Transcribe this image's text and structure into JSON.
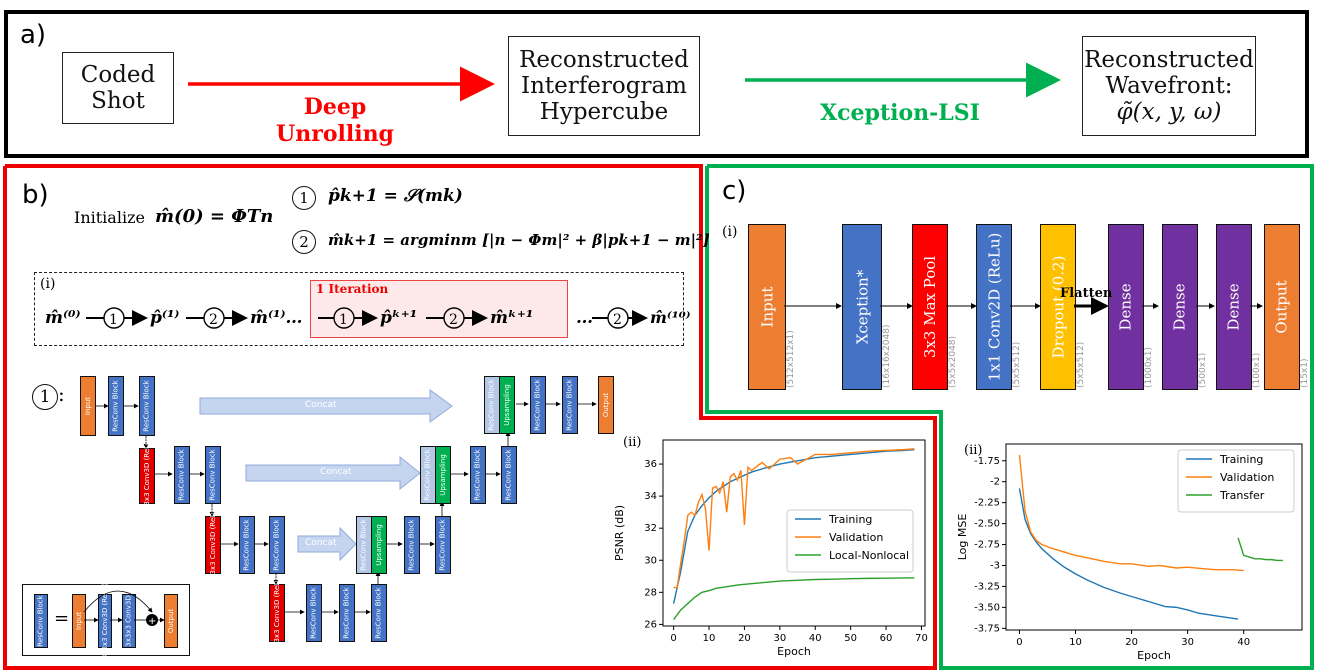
{
  "panel_a": {
    "label": "a)",
    "box1": [
      "Coded",
      "Shot"
    ],
    "arrow1_label": [
      "Deep",
      "Unrolling"
    ],
    "box2": [
      "Reconstructed",
      "Interferogram",
      "Hypercube"
    ],
    "arrow2_label": "Xception-LSI",
    "box3": [
      "Reconstructed",
      "Wavefront:"
    ],
    "box3_math": "φ̃(x, y, ω)"
  },
  "panel_b": {
    "label": "b)",
    "init_text": "Initialize",
    "init_math": "m̂(0) = ΦTn",
    "step1_num": "1",
    "step1_math": "p̂k+1 = 𝒮(mk)",
    "step2_num": "2",
    "step2_math": "m̂k+1 = argminm [|n − Φm|² + β|pk+1 − m|²]",
    "sub_i": "(i)",
    "iteration_label": "1 Iteration",
    "unet_label": "1",
    "unet_colon": ":",
    "concat": "Concat",
    "blocks": {
      "input": "Input",
      "resconv": "ResConv Block",
      "conv3d": "3x3x3 Conv3D (ReLu)",
      "upsampling": "Upsampling",
      "output": "Output",
      "conv3d_relu": "3x3x3 Conv3D (ReLu)",
      "conv3d_plain": "3x3x3 Conv3D"
    },
    "legend_eq": "="
  },
  "panel_c": {
    "label": "c)",
    "sub_i": "(i)",
    "flatten": "Flatten",
    "layers": [
      {
        "name": "Input",
        "shape": "(512x512x1)",
        "color": "#ED7D31"
      },
      {
        "name": "Xception*",
        "shape": "(16x16x2048)",
        "color": "#4472C4"
      },
      {
        "name": "3x3 Max Pool",
        "shape": "(5x5x2048)",
        "color": "#FF0000"
      },
      {
        "name": "1x1 Conv2D (ReLu)",
        "shape": "(5x5x512)",
        "color": "#4472C4"
      },
      {
        "name": "Dropout (0.2)",
        "shape": "(5x5x512)",
        "color": "#FFC000"
      },
      {
        "name": "Dense",
        "shape": "(1000x1)",
        "color": "#7030A0"
      },
      {
        "name": "Dense",
        "shape": "(500x1)",
        "color": "#7030A0"
      },
      {
        "name": "Dense",
        "shape": "(100x1)",
        "color": "#7030A0"
      },
      {
        "name": "Output",
        "shape": "(15x1)",
        "color": "#ED7D31"
      }
    ]
  },
  "chart_data": [
    {
      "type": "line",
      "panel": "(ii)",
      "xlabel": "Epoch",
      "ylabel": "PSNR (dB)",
      "xlim": [
        -3,
        71
      ],
      "ylim": [
        25.9,
        37.5
      ],
      "xticks": [
        0,
        10,
        20,
        30,
        40,
        50,
        60,
        70
      ],
      "yticks": [
        26,
        28,
        30,
        32,
        34,
        36
      ],
      "legend_position": "center-right",
      "series": [
        {
          "name": "Training",
          "color": "#1f77b4",
          "x": [
            0,
            2,
            4,
            6,
            8,
            10,
            12,
            14,
            16,
            18,
            20,
            22,
            25,
            30,
            35,
            40,
            45,
            50,
            55,
            60,
            65,
            68
          ],
          "y": [
            27.3,
            29.3,
            31.8,
            32.8,
            33.4,
            33.9,
            34.3,
            34.6,
            34.9,
            35.1,
            35.3,
            35.5,
            35.7,
            36.0,
            36.2,
            36.4,
            36.5,
            36.6,
            36.7,
            36.8,
            36.85,
            36.9
          ]
        },
        {
          "name": "Validation",
          "color": "#ff7f0e",
          "x": [
            0,
            1,
            2,
            3,
            4,
            5,
            6,
            7,
            8,
            9,
            10,
            11,
            12,
            13,
            14,
            15,
            16,
            17,
            18,
            19,
            20,
            21,
            22,
            25,
            27,
            30,
            33,
            35,
            40,
            45,
            50,
            55,
            60,
            65,
            68
          ],
          "y": [
            28.3,
            28.3,
            29.8,
            31.2,
            32.8,
            33.0,
            32.8,
            33.6,
            34.1,
            33.2,
            30.6,
            34.5,
            34.6,
            34.2,
            34.9,
            33.0,
            35.2,
            35.4,
            35.0,
            35.6,
            32.2,
            35.8,
            35.6,
            36.1,
            35.7,
            36.3,
            36.4,
            36.0,
            36.6,
            36.6,
            36.7,
            36.8,
            36.85,
            36.9,
            36.95
          ]
        },
        {
          "name": "Local-Nonlocal",
          "color": "#2ca02c",
          "x": [
            0,
            2,
            4,
            6,
            8,
            10,
            12,
            15,
            18,
            20,
            25,
            30,
            35,
            40,
            45,
            50,
            55,
            60,
            65,
            68
          ],
          "y": [
            26.3,
            26.9,
            27.3,
            27.7,
            28.0,
            28.1,
            28.25,
            28.35,
            28.45,
            28.5,
            28.6,
            28.7,
            28.75,
            28.8,
            28.82,
            28.85,
            28.87,
            28.88,
            28.9,
            28.9
          ]
        }
      ]
    },
    {
      "type": "line",
      "panel": "(ii)",
      "xlabel": "Epoch",
      "ylabel": "Log MSE",
      "xlim": [
        -2.4,
        50.4
      ],
      "ylim": [
        -3.77,
        -1.55
      ],
      "xticks": [
        0,
        10,
        20,
        30,
        40
      ],
      "yticks": [
        -1.75,
        -2.0,
        -2.25,
        -2.5,
        -2.75,
        -3.0,
        -3.25,
        -3.5,
        -3.75
      ],
      "legend_position": "top-right",
      "series": [
        {
          "name": "Training",
          "color": "#1f77b4",
          "x": [
            0,
            1,
            2,
            3,
            4,
            6,
            8,
            10,
            12,
            15,
            18,
            20,
            23,
            26,
            28,
            30,
            32,
            35,
            37,
            39
          ],
          "y": [
            -2.08,
            -2.45,
            -2.62,
            -2.72,
            -2.8,
            -2.92,
            -3.02,
            -3.1,
            -3.17,
            -3.26,
            -3.33,
            -3.37,
            -3.43,
            -3.49,
            -3.5,
            -3.53,
            -3.57,
            -3.6,
            -3.62,
            -3.64
          ]
        },
        {
          "name": "Validation",
          "color": "#ff7f0e",
          "x": [
            0,
            1,
            2,
            3,
            4,
            6,
            8,
            10,
            13,
            15,
            18,
            20,
            23,
            25,
            28,
            30,
            33,
            35,
            38,
            40
          ],
          "y": [
            -1.68,
            -2.35,
            -2.6,
            -2.7,
            -2.75,
            -2.8,
            -2.84,
            -2.88,
            -2.92,
            -2.95,
            -2.98,
            -2.98,
            -3.01,
            -3.0,
            -3.03,
            -3.02,
            -3.04,
            -3.05,
            -3.05,
            -3.06
          ]
        },
        {
          "name": "Transfer",
          "color": "#2ca02c",
          "x": [
            39,
            40,
            41,
            42,
            43,
            44,
            45,
            46,
            47
          ],
          "y": [
            -2.67,
            -2.88,
            -2.9,
            -2.92,
            -2.92,
            -2.93,
            -2.93,
            -2.94,
            -2.94
          ]
        }
      ]
    }
  ]
}
